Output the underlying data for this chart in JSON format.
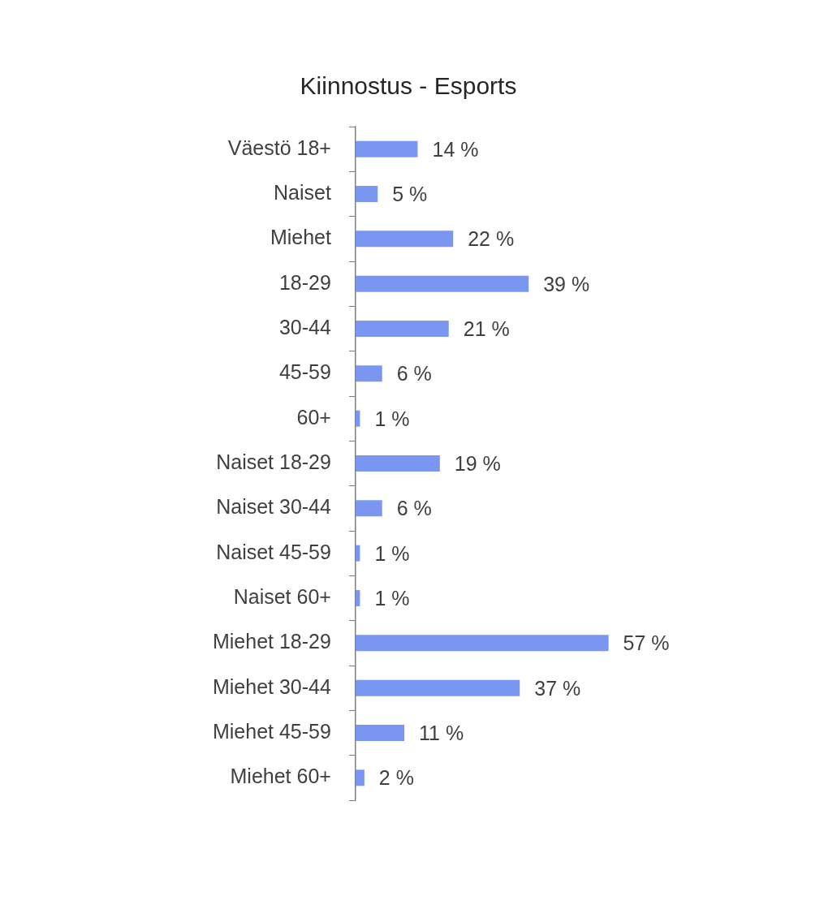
{
  "chart_data": {
    "type": "bar",
    "orientation": "horizontal",
    "title": "Kiinnostus - Esports",
    "categories": [
      "Väestö 18+",
      "Naiset",
      "Miehet",
      "18-29",
      "30-44",
      "45-59",
      "60+",
      "Naiset 18-29",
      "Naiset 30-44",
      "Naiset 45-59",
      "Naiset 60+",
      "Miehet 18-29",
      "Miehet 30-44",
      "Miehet 45-59",
      "Miehet 60+"
    ],
    "values": [
      14,
      5,
      22,
      39,
      21,
      6,
      1,
      19,
      6,
      1,
      1,
      57,
      37,
      11,
      2
    ],
    "value_labels": [
      "14 %",
      "5 %",
      "22 %",
      "39 %",
      "21 %",
      "6 %",
      "1 %",
      "19 %",
      "6 %",
      "1 %",
      "1 %",
      "57 %",
      "37 %",
      "11 %",
      "2 %"
    ],
    "color": "#7b96f0"
  }
}
